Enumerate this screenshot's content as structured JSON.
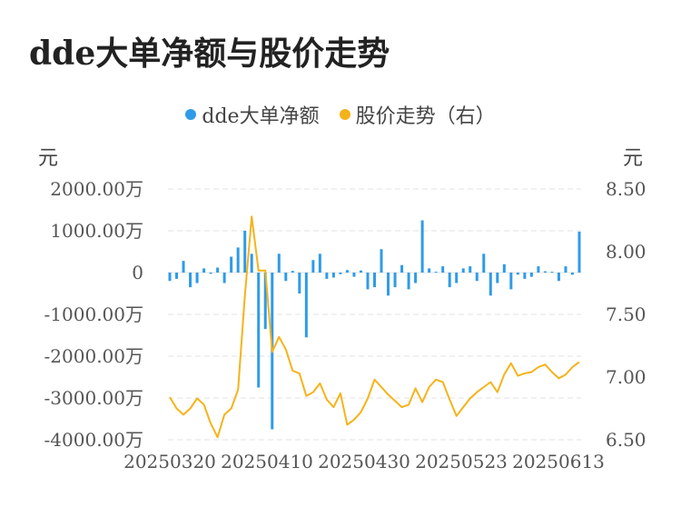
{
  "title": "dde大单净额与股价走势",
  "legend": [
    {
      "label": "dde大单净额",
      "color": "#2f9be8"
    },
    {
      "label": "股价走势（右）",
      "color": "#f5b31a"
    }
  ],
  "units": {
    "left": "元",
    "right": "元"
  },
  "chart_data": {
    "type": "bar",
    "title": "dde大单净额与股价走势",
    "x_ticks": [
      "20250320",
      "20250410",
      "20250430",
      "20250523",
      "20250613"
    ],
    "y_left": {
      "ticks": [
        "2000.00万",
        "1000.00万",
        "0",
        "-1000.00万",
        "-2000.00万",
        "-3000.00万",
        "-4000.00万"
      ],
      "ylim": [
        -4000,
        2000
      ]
    },
    "y_right": {
      "ticks": [
        "8.50",
        "8.00",
        "7.50",
        "7.00",
        "6.50"
      ],
      "ylim": [
        6.5,
        8.5
      ]
    },
    "grid": true,
    "legend_position": "top",
    "series": [
      {
        "name": "dde大单净额",
        "type": "bar",
        "axis": "left",
        "color": "#2f9be8",
        "values": [
          -200,
          -150,
          280,
          -350,
          -250,
          100,
          -30,
          120,
          -250,
          380,
          600,
          1000,
          450,
          -2750,
          -1350,
          -3750,
          450,
          -200,
          40,
          -500,
          -1550,
          300,
          450,
          -150,
          -120,
          -40,
          60,
          -100,
          50,
          -400,
          -350,
          560,
          -550,
          -350,
          180,
          -400,
          -250,
          1250,
          100,
          20,
          150,
          -350,
          -250,
          100,
          150,
          -200,
          450,
          -550,
          -250,
          200,
          -400,
          -50,
          -150,
          -100,
          150,
          30,
          20,
          -200,
          150,
          -50,
          980
        ]
      },
      {
        "name": "股价走势（右）",
        "type": "line",
        "axis": "right",
        "color": "#f5b31a",
        "values": [
          6.84,
          6.75,
          6.7,
          6.75,
          6.83,
          6.78,
          6.63,
          6.52,
          6.7,
          6.75,
          6.9,
          7.65,
          8.28,
          7.85,
          7.85,
          7.2,
          7.32,
          7.22,
          7.05,
          7.03,
          6.85,
          6.88,
          6.95,
          6.82,
          6.76,
          6.87,
          6.62,
          6.66,
          6.72,
          6.83,
          6.98,
          6.92,
          6.86,
          6.81,
          6.76,
          6.78,
          6.91,
          6.8,
          6.92,
          6.98,
          6.96,
          6.82,
          6.69,
          6.76,
          6.83,
          6.88,
          6.92,
          6.96,
          6.88,
          7.02,
          7.11,
          7.01,
          7.03,
          7.04,
          7.08,
          7.1,
          7.04,
          6.99,
          7.02,
          7.08,
          7.12
        ]
      }
    ]
  }
}
